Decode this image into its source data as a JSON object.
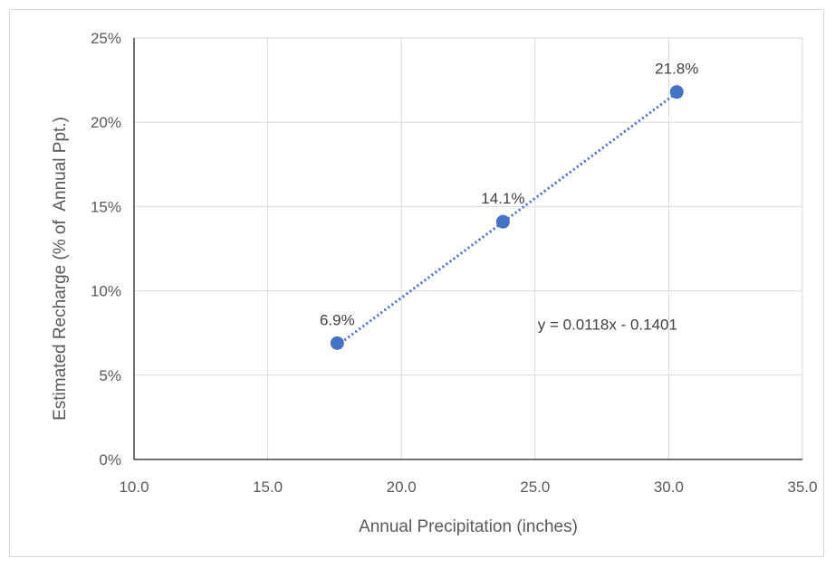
{
  "chart_data": {
    "type": "scatter",
    "title": "",
    "xlabel": "Annual Precipitation (inches)",
    "ylabel": "Estimated Recharge (% of  Annual Ppt.)",
    "xlim": [
      10,
      35
    ],
    "ylim": [
      0,
      0.25
    ],
    "x_ticks": [
      10,
      15,
      20,
      25,
      30,
      35
    ],
    "x_tick_labels": [
      "10.0",
      "15.0",
      "20.0",
      "25.0",
      "30.0",
      "35.0"
    ],
    "y_ticks": [
      0,
      0.05,
      0.1,
      0.15,
      0.2,
      0.25
    ],
    "y_tick_labels": [
      "0%",
      "5%",
      "10%",
      "15%",
      "20%",
      "25%"
    ],
    "grid": true,
    "legend": "none",
    "series": [
      {
        "x": [
          17.6,
          23.8,
          30.3
        ],
        "y": [
          0.069,
          0.141,
          0.218
        ],
        "labels": [
          "6.9%",
          "14.1%",
          "21.8%"
        ],
        "color": "#4472c4"
      }
    ],
    "trendline": {
      "type": "linear",
      "slope": 0.0118,
      "intercept": -0.1401,
      "x_range": [
        17.6,
        30.3
      ],
      "equation_label": "y = 0.0118x - 0.1401",
      "color": "#4472c4",
      "style": "dotted"
    }
  },
  "colors": {
    "grid": "#d9d9d9",
    "axis": "#404040",
    "marker": "#4472c4"
  }
}
